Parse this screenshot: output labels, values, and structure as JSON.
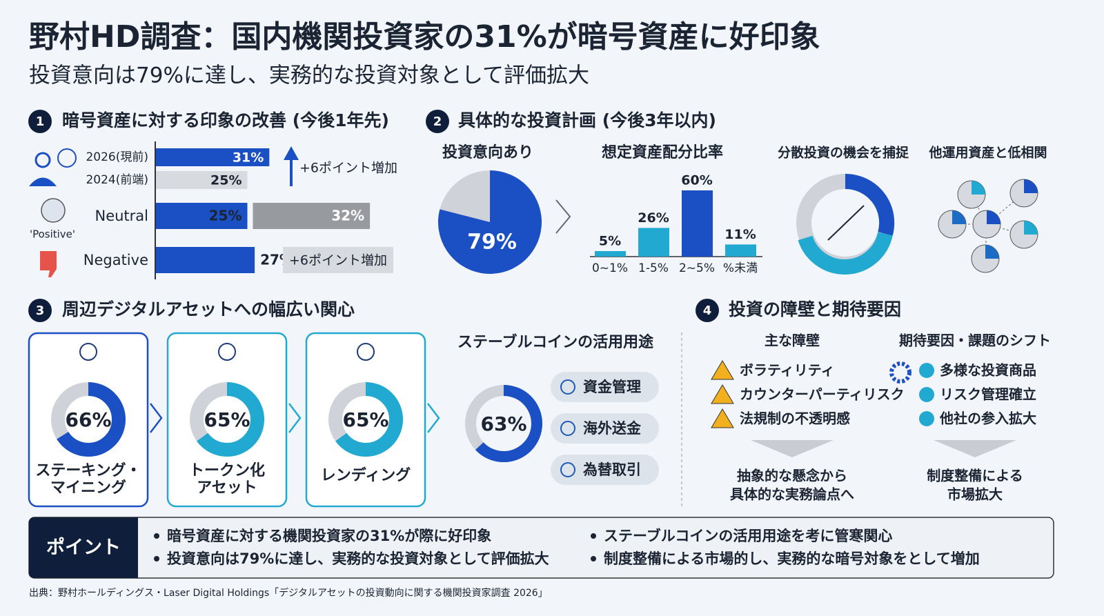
{
  "title": "野村HD調査：国内機関投資家の31%が暗号資産に好印象",
  "subtitle": "投資意向は79%に達し、実務的な投資対象として評価拡大",
  "section1": {
    "number": "1",
    "heading": "暗号資産に対する印象の改善 (今後1年先)",
    "rows": [
      {
        "label": "2026(現前)",
        "value": 31,
        "value_label": "31%"
      },
      {
        "label": "2024(前端)",
        "value": 25,
        "value_label": "25%"
      }
    ],
    "arrow_note": "+6ポイント増加",
    "icon_label": "'Positive'",
    "neutral": {
      "label": "Neutral",
      "values": [
        25,
        32
      ],
      "value_labels": [
        "25%",
        "32%"
      ]
    },
    "negative": {
      "label": "Negative",
      "value": 27,
      "value_label": "27%",
      "note": "+6ポイント増加"
    }
  },
  "section2": {
    "number": "2",
    "heading": "具体的な投資計画 (今後3年以内)",
    "intent": {
      "heading": "投資意向あり",
      "value": 79,
      "value_label": "79%"
    },
    "allocation": {
      "heading": "想定資産配分比率",
      "categories": [
        "0~1%",
        "1-5%",
        "2~5%",
        "%未満"
      ],
      "values": [
        5,
        26,
        60,
        11
      ],
      "value_labels": [
        "5%",
        "26%",
        "60%",
        "11%"
      ]
    },
    "diversify": "分散投資の機会を捕捉",
    "low_correlation": "他運用資産と低相関"
  },
  "section3": {
    "number": "3",
    "heading": "周辺デジタルアセットへの幅広い関心",
    "cards": [
      {
        "value": 66,
        "value_label": "66%",
        "label": [
          "ステーキング・",
          "マイニング"
        ]
      },
      {
        "value": 65,
        "value_label": "65%",
        "label": [
          "トークン化",
          "アセット"
        ]
      },
      {
        "value": 65,
        "value_label": "65%",
        "label": [
          "レンディング"
        ]
      }
    ],
    "stablecoin": {
      "heading": "ステーブルコインの活用用途",
      "value": 63,
      "value_label": "63%",
      "uses": [
        "資金管理",
        "海外送金",
        "為替取引"
      ]
    }
  },
  "section4": {
    "number": "4",
    "heading": "投資の障壁と期待要因",
    "barriers": {
      "heading": "主な障壁",
      "items": [
        "ボラティリティ",
        "カウンターパーティリスク",
        "法規制の不透明感"
      ],
      "conclusion": [
        "抽象的な懸念から",
        "具体的な実務論点へ"
      ]
    },
    "drivers": {
      "heading": "期待要因・課題のシフト",
      "items": [
        "多様な投資商品",
        "リスク管理確立",
        "他社の参入拡大"
      ],
      "conclusion": [
        "制度整備による",
        "市場拡大"
      ]
    }
  },
  "points": {
    "label": "ポイント",
    "items": [
      "暗号資産に対する機関投資家の31%が際に好印象",
      "投資意向は79%に達し、実務的な投資対象として評価拡大",
      "ステーブルコインの活用用途を考に管寒関心",
      "制度整備による市場的し、実務的な暗号対象をとして増加"
    ]
  },
  "source": "出典：野村ホールディングス・Laser Digital Holdings「デジタルアセットの投資動向に関する機関投資家調査 2026」"
}
